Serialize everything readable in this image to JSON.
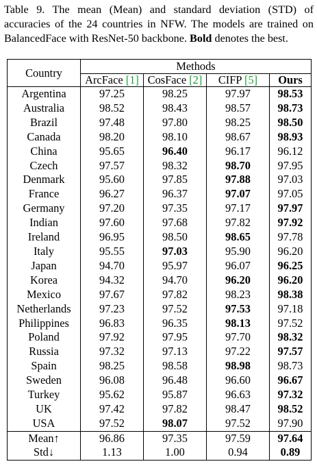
{
  "caption": {
    "part1": "Table 9.  The mean (Mean) and standard deviation (STD) of accuracies of the 24 countries in NFW. The models are trained on BalancedFace with ResNet-50 backbone. ",
    "bold_word": "Bold",
    "part2": " denotes the best."
  },
  "header": {
    "country": "Country",
    "methods": "Methods",
    "cols": [
      {
        "name": "ArcFace",
        "cite": "[1]"
      },
      {
        "name": "CosFace",
        "cite": "[2]"
      },
      {
        "name": "CIFP",
        "cite": "[5]"
      },
      {
        "name": "Ours",
        "cite": ""
      }
    ]
  },
  "rows": [
    {
      "country": "Argentina",
      "values": [
        "97.25",
        "98.25",
        "97.97",
        "98.53"
      ],
      "best": [
        3
      ]
    },
    {
      "country": "Australia",
      "values": [
        "98.52",
        "98.43",
        "98.57",
        "98.73"
      ],
      "best": [
        3
      ]
    },
    {
      "country": "Brazil",
      "values": [
        "97.48",
        "97.80",
        "98.25",
        "98.50"
      ],
      "best": [
        3
      ]
    },
    {
      "country": "Canada",
      "values": [
        "98.20",
        "98.10",
        "98.67",
        "98.93"
      ],
      "best": [
        3
      ]
    },
    {
      "country": "China",
      "values": [
        "95.65",
        "96.40",
        "96.17",
        "96.12"
      ],
      "best": [
        1
      ]
    },
    {
      "country": "Czech",
      "values": [
        "97.57",
        "98.32",
        "98.70",
        "97.95"
      ],
      "best": [
        2
      ]
    },
    {
      "country": "Denmark",
      "values": [
        "95.60",
        "97.85",
        "97.88",
        "97.03"
      ],
      "best": [
        2
      ]
    },
    {
      "country": "France",
      "values": [
        "96.27",
        "96.37",
        "97.07",
        "97.05"
      ],
      "best": [
        2
      ]
    },
    {
      "country": "Germany",
      "values": [
        "97.20",
        "97.35",
        "97.17",
        "97.97"
      ],
      "best": [
        3
      ]
    },
    {
      "country": "Indian",
      "values": [
        "97.60",
        "97.68",
        "97.82",
        "97.92"
      ],
      "best": [
        3
      ]
    },
    {
      "country": "Ireland",
      "values": [
        "96.95",
        "98.50",
        "98.65",
        "97.78"
      ],
      "best": [
        2
      ]
    },
    {
      "country": "Italy",
      "values": [
        "95.55",
        "97.03",
        "95.90",
        "96.20"
      ],
      "best": [
        1
      ]
    },
    {
      "country": "Japan",
      "values": [
        "94.70",
        "95.97",
        "96.07",
        "96.25"
      ],
      "best": [
        3
      ]
    },
    {
      "country": "Korea",
      "values": [
        "94.32",
        "94.70",
        "96.20",
        "96.20"
      ],
      "best": [
        2,
        3
      ]
    },
    {
      "country": "Mexico",
      "values": [
        "97.67",
        "97.82",
        "98.23",
        "98.38"
      ],
      "best": [
        3
      ]
    },
    {
      "country": "Netherlands",
      "values": [
        "97.23",
        "97.52",
        "97.53",
        "97.18"
      ],
      "best": [
        2
      ]
    },
    {
      "country": "Philippines",
      "values": [
        "96.83",
        "96.35",
        "98.13",
        "97.52"
      ],
      "best": [
        2
      ]
    },
    {
      "country": "Poland",
      "values": [
        "97.92",
        "97.95",
        "97.70",
        "98.32"
      ],
      "best": [
        3
      ]
    },
    {
      "country": "Russia",
      "values": [
        "97.32",
        "97.13",
        "97.22",
        "97.57"
      ],
      "best": [
        3
      ]
    },
    {
      "country": "Spain",
      "values": [
        "98.25",
        "98.58",
        "98.98",
        "98.73"
      ],
      "best": [
        2
      ]
    },
    {
      "country": "Sweden",
      "values": [
        "96.08",
        "96.48",
        "96.60",
        "96.67"
      ],
      "best": [
        3
      ]
    },
    {
      "country": "Turkey",
      "values": [
        "95.62",
        "95.87",
        "96.63",
        "97.32"
      ],
      "best": [
        3
      ]
    },
    {
      "country": "UK",
      "values": [
        "97.42",
        "97.82",
        "98.47",
        "98.52"
      ],
      "best": [
        3
      ]
    },
    {
      "country": "USA",
      "values": [
        "97.52",
        "98.07",
        "97.52",
        "97.90"
      ],
      "best": [
        1
      ]
    }
  ],
  "summary": [
    {
      "label": "Mean↑",
      "values": [
        "96.86",
        "97.35",
        "97.59",
        "97.64"
      ],
      "best": [
        3
      ]
    },
    {
      "label": "Std↓",
      "values": [
        "1.13",
        "1.00",
        "0.94",
        "0.89"
      ],
      "best": [
        3
      ]
    }
  ],
  "colors": {
    "citation": "#1f9e3a"
  }
}
